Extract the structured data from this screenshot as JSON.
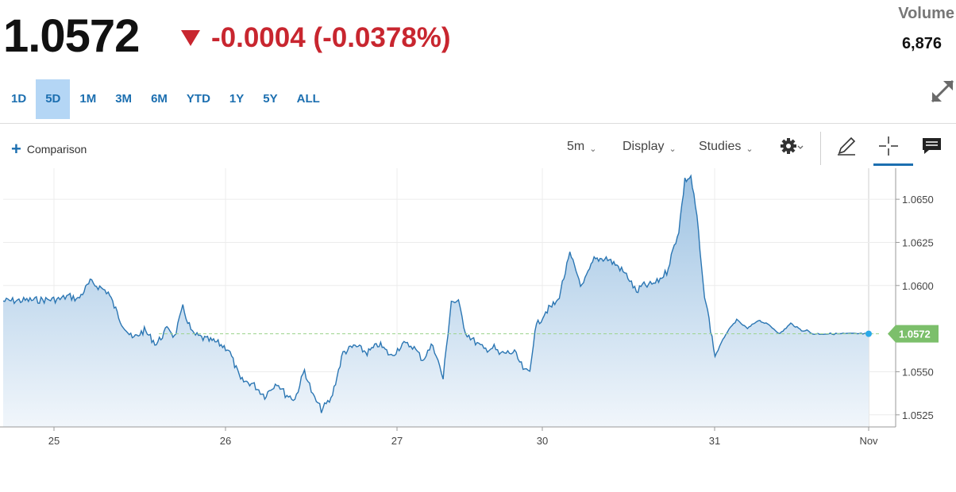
{
  "quote": {
    "price": "1.0572",
    "change": "-0.0004 (-0.0378%)",
    "volume_label": "Volume",
    "volume_value": "6,876"
  },
  "ranges": [
    {
      "label": "1D",
      "active": false
    },
    {
      "label": "5D",
      "active": true
    },
    {
      "label": "1M",
      "active": false
    },
    {
      "label": "3M",
      "active": false
    },
    {
      "label": "6M",
      "active": false
    },
    {
      "label": "YTD",
      "active": false
    },
    {
      "label": "1Y",
      "active": false
    },
    {
      "label": "5Y",
      "active": false
    },
    {
      "label": "ALL",
      "active": false
    }
  ],
  "toolbar": {
    "comparison_label": "Comparison",
    "interval_label": "5m",
    "display_label": "Display",
    "studies_label": "Studies"
  },
  "colors": {
    "line": "#2b76b3",
    "down": "#c8262f",
    "accent": "#1c6fb0",
    "last_price_tag": "#7cbf6b"
  },
  "icons": [
    "plus-icon",
    "gear-icon",
    "pencil-icon",
    "crosshair-icon",
    "comment-icon",
    "expand-icon",
    "chevron-down-icon"
  ],
  "chart_data": {
    "type": "area",
    "xlabel": "",
    "ylabel": "",
    "x_ticks": [
      "25",
      "26",
      "27",
      "30",
      "31",
      "Nov"
    ],
    "y_ticks": [
      "1.0650",
      "1.0625",
      "1.0600",
      "1.0550",
      "1.0525"
    ],
    "ylim": [
      1.0518,
      1.0668
    ],
    "last_price_label": "1.0572",
    "last_price": 1.0572,
    "reference_line": 1.0572,
    "grid": true,
    "series": [
      {
        "x": [
          0.0,
          0.05,
          0.12,
          0.2,
          0.3,
          0.38,
          0.45,
          0.55,
          0.65,
          0.75,
          0.85,
          0.95,
          1.0,
          1.07,
          1.15,
          1.25,
          1.35,
          1.45,
          1.55,
          1.65,
          1.75,
          1.85,
          1.92,
          2.0,
          2.08,
          2.15,
          2.22,
          2.3,
          2.4,
          2.5,
          2.6,
          2.7,
          2.8,
          2.9,
          3.0,
          3.1,
          3.2,
          3.3,
          3.38,
          3.45,
          3.52,
          3.6,
          3.7,
          3.8,
          3.85,
          3.9,
          4.0,
          4.1,
          4.15,
          4.2,
          4.3,
          4.4,
          4.5,
          4.6,
          4.7,
          4.8,
          4.9,
          4.98,
          5.05,
          5.1,
          5.15,
          5.22,
          5.3,
          5.4,
          5.45,
          5.5,
          5.55,
          5.6,
          5.65,
          5.7,
          5.8,
          5.9,
          6.0,
          6.1,
          6.2,
          6.3,
          6.4,
          6.5,
          6.55,
          6.6,
          6.65,
          6.7,
          6.75,
          6.8,
          6.85,
          6.9,
          6.95,
          7.0,
          7.05,
          7.1,
          7.12
        ],
        "y": [
          1.0591,
          1.0592,
          1.0594,
          1.0592,
          1.0602,
          1.0599,
          1.0596,
          1.058,
          1.0569,
          1.0574,
          1.0566,
          1.0576,
          1.057,
          1.0587,
          1.0572,
          1.0569,
          1.0567,
          1.0563,
          1.0545,
          1.0543,
          1.0536,
          1.0544,
          1.0537,
          1.0534,
          1.0551,
          1.0536,
          1.0528,
          1.0534,
          1.0561,
          1.0565,
          1.0561,
          1.0566,
          1.0559,
          1.0566,
          1.0565,
          1.0557,
          1.0566,
          1.0546,
          1.0591,
          1.059,
          1.0573,
          1.0568,
          1.0563,
          1.0564,
          1.056,
          1.0561,
          1.0561,
          1.055,
          1.055,
          1.0575,
          1.0585,
          1.0591,
          1.0618,
          1.0599,
          1.0615,
          1.0616,
          1.0611,
          1.0605,
          1.0596,
          1.06,
          1.06,
          1.0602,
          1.0608,
          1.0632,
          1.0661,
          1.0663,
          1.064,
          1.06,
          1.058,
          1.0559,
          1.0572,
          1.058,
          1.0575,
          1.058,
          1.0577,
          1.0572,
          1.0578,
          1.0574,
          1.0574,
          1.0572,
          1.0572,
          1.0572,
          1.0572,
          1.0572,
          1.0572,
          1.0572,
          1.0572,
          1.0572,
          1.0572,
          1.0572,
          1.0572
        ]
      }
    ]
  }
}
